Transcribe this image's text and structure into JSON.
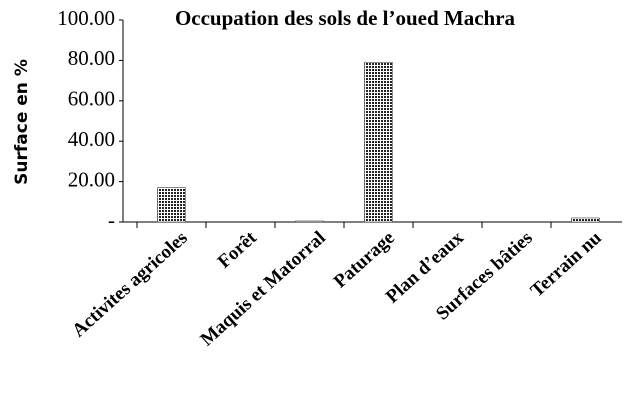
{
  "chart_data": {
    "type": "bar",
    "title": "Occupation des sols de l’oued Machra",
    "y_label": "Surface en %",
    "categories": [
      "Activites agricoles",
      "Forêt",
      "Maquis et Matorral",
      "Paturage",
      "Plan d’eaux",
      "Surfaces bâties",
      "Terrain nu"
    ],
    "values": [
      17,
      0,
      0.5,
      79,
      0,
      0,
      2
    ],
    "color": "#222222",
    "ylim": [
      0,
      100
    ],
    "yticks": [
      {
        "value": 0,
        "label": "-"
      },
      {
        "value": 20,
        "label": "20.00"
      },
      {
        "value": 40,
        "label": "40.00"
      },
      {
        "value": 60,
        "label": "60.00"
      },
      {
        "value": 80,
        "label": "80.00"
      },
      {
        "value": 100,
        "label": "100.00"
      }
    ],
    "grid": false
  }
}
